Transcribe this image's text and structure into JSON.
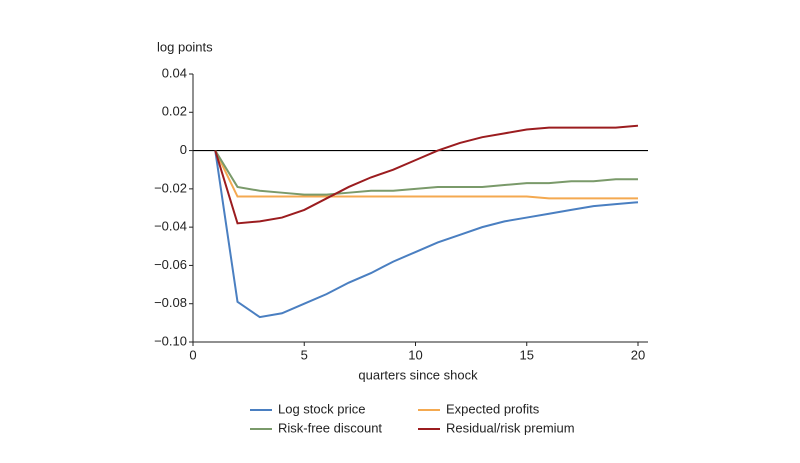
{
  "chart_data": {
    "type": "line",
    "y_label": "log points",
    "x_label": "quarters since shock",
    "x": [
      1,
      2,
      3,
      4,
      5,
      6,
      7,
      8,
      9,
      10,
      11,
      12,
      13,
      14,
      15,
      16,
      17,
      18,
      19,
      20
    ],
    "series": [
      {
        "name": "Log stock price",
        "color": "#4a7fc1",
        "values": [
          0,
          -0.079,
          -0.087,
          -0.085,
          -0.08,
          -0.075,
          -0.069,
          -0.064,
          -0.058,
          -0.053,
          -0.048,
          -0.044,
          -0.04,
          -0.037,
          -0.035,
          -0.033,
          -0.031,
          -0.029,
          -0.028,
          -0.027
        ]
      },
      {
        "name": "Expected profits",
        "color": "#f4a950",
        "values": [
          0,
          -0.024,
          -0.024,
          -0.024,
          -0.024,
          -0.024,
          -0.024,
          -0.024,
          -0.024,
          -0.024,
          -0.024,
          -0.024,
          -0.024,
          -0.024,
          -0.024,
          -0.025,
          -0.025,
          -0.025,
          -0.025,
          -0.025
        ]
      },
      {
        "name": "Risk-free discount",
        "color": "#7a9a6a",
        "values": [
          0,
          -0.019,
          -0.021,
          -0.022,
          -0.023,
          -0.023,
          -0.022,
          -0.021,
          -0.021,
          -0.02,
          -0.019,
          -0.019,
          -0.019,
          -0.018,
          -0.017,
          -0.017,
          -0.016,
          -0.016,
          -0.015,
          -0.015
        ]
      },
      {
        "name": "Residual/risk premium",
        "color": "#9b1c1f",
        "values": [
          0,
          -0.038,
          -0.037,
          -0.035,
          -0.031,
          -0.025,
          -0.019,
          -0.014,
          -0.01,
          -0.005,
          0.0,
          0.004,
          0.007,
          0.009,
          0.011,
          0.012,
          0.012,
          0.012,
          0.012,
          0.013
        ]
      }
    ],
    "xlim": [
      0,
      20.45
    ],
    "xticks": [
      0,
      5,
      10,
      15,
      20
    ],
    "ylim": [
      -0.1,
      0.04
    ],
    "yticks": [
      0.04,
      0.02,
      0,
      {
        "value": -0.02,
        "label": "−0.02"
      },
      {
        "value": -0.04,
        "label": "−0.04"
      },
      {
        "value": -0.06,
        "label": "−0.06"
      },
      {
        "value": -0.08,
        "label": "−0.08"
      },
      {
        "value": -0.1,
        "label": "−0.10"
      }
    ]
  }
}
